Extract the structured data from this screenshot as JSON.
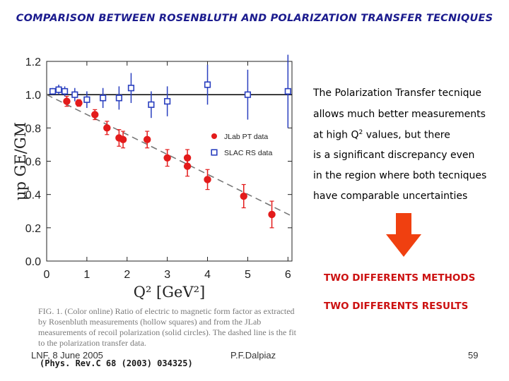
{
  "title": "COMPARISON BETWEEN ROSENBLUTH AND POLARIZATION TRANSFER TECNIQUES",
  "right_text": {
    "line1": "The Polarization Transfer tecnique",
    "line2": "allows much better measurements",
    "line3_pre": "at high Q",
    "line3_sup": "2",
    "line3_post": " values, but there",
    "line4": "is a significant discrepancy even",
    "line5": "in the region where both tecniques",
    "line6": "have comparable uncertainties"
  },
  "methods": "TWO DIFFERENTS METHODS",
  "results": "TWO DIFFERENTS RESULTS",
  "caption": "FIG. 1. (Color online) Ratio of electric to magnetic form factor as extracted by Rosenbluth measurements (hollow squares) and from the JLab measurements of recoil polarization (solid circles). The dashed line is the fit to the polarization transfer data.",
  "reference": "(Phys. Rev.C 68 (2003) 034325)",
  "footer": {
    "left": "LNF, 8 June 2005",
    "center": "P.F.Dalpiaz",
    "page": "59"
  },
  "colors": {
    "title": "#1b1b8e",
    "jlab": "#e31b1b",
    "slac": "#2a3fbf",
    "accent": "#cc1111",
    "arrow": "#f04010"
  },
  "chart_data": {
    "type": "scatter",
    "xlabel": "Q² [GeV²]",
    "ylabel": "μp GE/GM",
    "xlim": [
      0,
      6.1
    ],
    "ylim": [
      0,
      1.2
    ],
    "xticks": [
      "0",
      "1",
      "2",
      "3",
      "4",
      "5",
      "6"
    ],
    "yticks": [
      "0.0",
      "0.2",
      "0.4",
      "0.6",
      "0.8",
      "1.0",
      "1.2"
    ],
    "reference_line": 1.0,
    "fit_line": {
      "style": "dashed",
      "points": [
        [
          0,
          1.0
        ],
        [
          6.1,
          0.27
        ]
      ]
    },
    "legend_position": "center",
    "series": [
      {
        "name": "JLab PT data",
        "marker": "solid-circle",
        "color": "#e31b1b",
        "points": [
          {
            "x": 0.5,
            "y": 0.96,
            "err": 0.03
          },
          {
            "x": 0.8,
            "y": 0.95,
            "err": 0.02
          },
          {
            "x": 1.2,
            "y": 0.88,
            "err": 0.03
          },
          {
            "x": 1.5,
            "y": 0.8,
            "err": 0.04
          },
          {
            "x": 1.8,
            "y": 0.74,
            "err": 0.05
          },
          {
            "x": 1.9,
            "y": 0.73,
            "err": 0.05
          },
          {
            "x": 2.5,
            "y": 0.73,
            "err": 0.05
          },
          {
            "x": 3.0,
            "y": 0.62,
            "err": 0.05
          },
          {
            "x": 3.5,
            "y": 0.62,
            "err": 0.05
          },
          {
            "x": 3.5,
            "y": 0.57,
            "err": 0.06
          },
          {
            "x": 4.0,
            "y": 0.49,
            "err": 0.06
          },
          {
            "x": 4.9,
            "y": 0.39,
            "err": 0.07
          },
          {
            "x": 5.6,
            "y": 0.28,
            "err": 0.08
          }
        ]
      },
      {
        "name": "SLAC RS data",
        "marker": "hollow-square",
        "color": "#2a3fbf",
        "points": [
          {
            "x": 0.15,
            "y": 1.02,
            "err": 0.02
          },
          {
            "x": 0.3,
            "y": 1.03,
            "err": 0.03
          },
          {
            "x": 0.45,
            "y": 1.02,
            "err": 0.03
          },
          {
            "x": 0.7,
            "y": 1.0,
            "err": 0.04
          },
          {
            "x": 1.0,
            "y": 0.97,
            "err": 0.05
          },
          {
            "x": 1.4,
            "y": 0.98,
            "err": 0.06
          },
          {
            "x": 1.8,
            "y": 0.98,
            "err": 0.07
          },
          {
            "x": 2.1,
            "y": 1.04,
            "err": 0.09
          },
          {
            "x": 2.6,
            "y": 0.94,
            "err": 0.08
          },
          {
            "x": 3.0,
            "y": 0.96,
            "err": 0.09
          },
          {
            "x": 4.0,
            "y": 1.06,
            "err": 0.12
          },
          {
            "x": 5.0,
            "y": 1.0,
            "err": 0.15
          },
          {
            "x": 6.0,
            "y": 1.02,
            "err": 0.22
          }
        ]
      }
    ]
  }
}
